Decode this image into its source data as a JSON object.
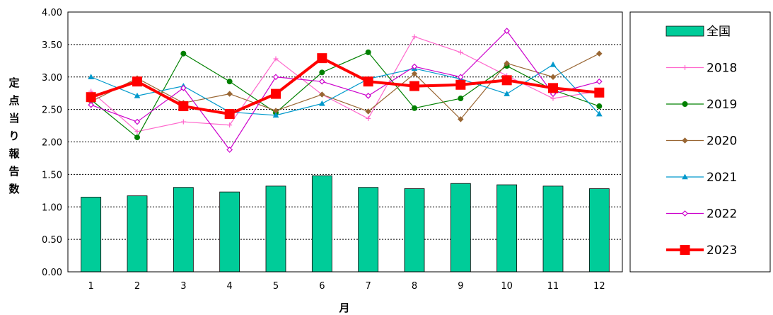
{
  "chart_data": {
    "type": "bar+line",
    "xlabel": "月",
    "ylabel": "定点当り報告数",
    "ylim": [
      0,
      4.0
    ],
    "yticks": [
      "0.00",
      "0.50",
      "1.00",
      "1.50",
      "2.00",
      "2.50",
      "3.00",
      "3.50",
      "4.00"
    ],
    "categories": [
      "1",
      "2",
      "3",
      "4",
      "5",
      "6",
      "7",
      "8",
      "9",
      "10",
      "11",
      "12"
    ],
    "grid": true,
    "legend_position": "right",
    "bar_series": {
      "name": "全国",
      "color": "#00cc99",
      "values": [
        1.15,
        1.17,
        1.3,
        1.23,
        1.32,
        1.48,
        1.3,
        1.28,
        1.36,
        1.34,
        1.32,
        1.28
      ]
    },
    "series": [
      {
        "name": "2018",
        "color": "#ff66cc",
        "marker": "plus",
        "values": [
          2.78,
          2.16,
          2.31,
          2.26,
          3.28,
          2.73,
          2.36,
          3.62,
          3.38,
          3.02,
          2.67,
          2.78
        ]
      },
      {
        "name": "2019",
        "color": "#008000",
        "marker": "circle",
        "values": [
          2.65,
          2.07,
          3.36,
          2.93,
          2.45,
          3.07,
          3.38,
          2.52,
          2.67,
          3.17,
          2.8,
          2.55
        ]
      },
      {
        "name": "2020",
        "color": "#996633",
        "marker": "diamond",
        "values": [
          2.62,
          2.98,
          2.6,
          2.74,
          2.48,
          2.73,
          2.47,
          3.05,
          2.35,
          3.21,
          3.0,
          3.36
        ]
      },
      {
        "name": "2021",
        "color": "#0099cc",
        "marker": "triangle",
        "values": [
          3.0,
          2.71,
          2.86,
          2.46,
          2.41,
          2.59,
          2.97,
          3.13,
          2.97,
          2.74,
          3.19,
          2.43
        ]
      },
      {
        "name": "2022",
        "color": "#cc00cc",
        "marker": "diamond-open",
        "values": [
          2.57,
          2.31,
          2.83,
          1.88,
          3.0,
          2.93,
          2.71,
          3.16,
          3.0,
          3.71,
          2.74,
          2.93
        ]
      },
      {
        "name": "2023",
        "color": "#ff0000",
        "marker": "square",
        "bold": true,
        "values": [
          2.69,
          2.93,
          2.55,
          2.43,
          2.74,
          3.29,
          2.93,
          2.86,
          2.88,
          2.95,
          2.83,
          2.76
        ]
      }
    ]
  }
}
